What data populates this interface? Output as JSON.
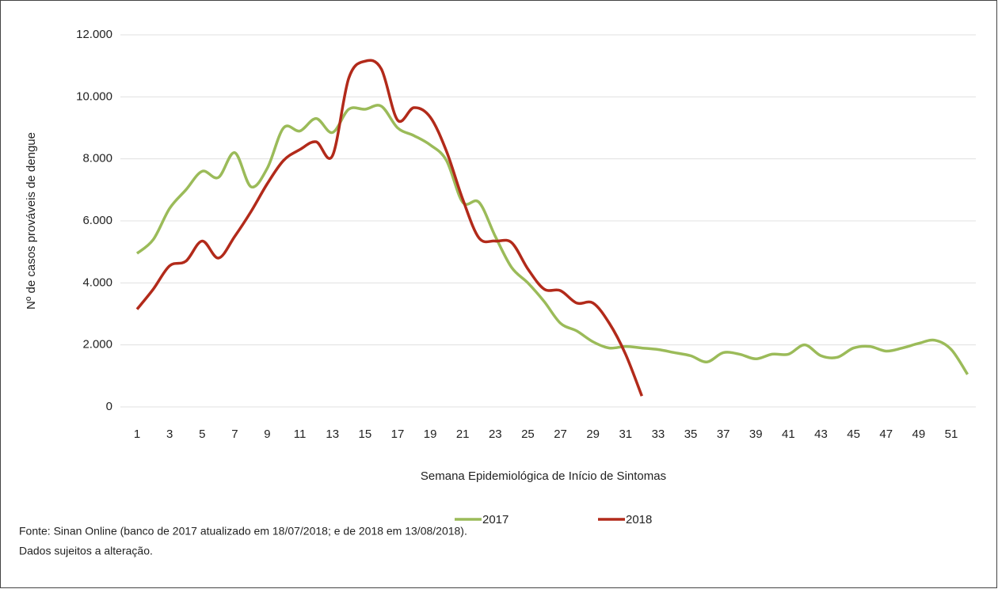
{
  "chart_data": {
    "type": "line",
    "y_label": "Nº de casos prováveis de dengue",
    "x_label": "Semana Epidemiológica de Início de Sintomas",
    "categories": [
      "1",
      null,
      "3",
      null,
      "5",
      null,
      "7",
      null,
      "9",
      null,
      "11",
      null,
      "13",
      null,
      "15",
      null,
      "17",
      null,
      "19",
      null,
      "21",
      null,
      "23",
      null,
      "25",
      null,
      "27",
      null,
      "29",
      null,
      "31",
      null,
      "33",
      null,
      "35",
      null,
      "37",
      null,
      "39",
      null,
      "41",
      null,
      "43",
      null,
      "45",
      null,
      "47",
      null,
      "49",
      null,
      "51",
      null
    ],
    "series": [
      {
        "name": "2017",
        "color": "#9bbb59",
        "values": [
          4950,
          5400,
          6400,
          7000,
          7600,
          7400,
          8200,
          7100,
          7700,
          9000,
          8900,
          9300,
          8850,
          9600,
          9600,
          9700,
          9000,
          8750,
          8450,
          7950,
          6600,
          6600,
          5500,
          4500,
          4000,
          3400,
          2700,
          2450,
          2100,
          1900,
          1950,
          1900,
          1850,
          1750,
          1650,
          1450,
          1750,
          1700,
          1550,
          1700,
          1700,
          2000,
          1650,
          1600,
          1900,
          1950,
          1800,
          1900,
          2050,
          2150,
          1850,
          1050
        ]
      },
      {
        "name": "2018",
        "color": "#b22a1a",
        "values": [
          3150,
          3800,
          4550,
          4700,
          5350,
          4800,
          5500,
          6300,
          7200,
          7950,
          8300,
          8550,
          8100,
          10600,
          11150,
          10900,
          9250,
          9650,
          9350,
          8250,
          6700,
          5450,
          5350,
          5300,
          4450,
          3800,
          3750,
          3350,
          3350,
          2700,
          1700,
          350,
          null,
          null,
          null,
          null,
          null,
          null,
          null,
          null,
          null,
          null,
          null,
          null,
          null,
          null,
          null,
          null,
          null,
          null,
          null,
          null
        ]
      }
    ],
    "ylim": [
      0,
      12000
    ],
    "yticks": [
      0,
      {
        "value": 2000,
        "label": "2.000"
      },
      {
        "value": 4000,
        "label": "4.000"
      },
      {
        "value": 6000,
        "label": "6.000"
      },
      {
        "value": 8000,
        "label": "8.000"
      },
      {
        "value": 10000,
        "label": "10.000"
      },
      {
        "value": 12000,
        "label": "12.000"
      }
    ],
    "grid": true,
    "legend": "bottom",
    "notes": [
      "Fonte: Sinan Online (banco de 2017 atualizado em 18/07/2018; e de 2018 em 13/08/2018).",
      "Dados sujeitos a alteração."
    ]
  }
}
